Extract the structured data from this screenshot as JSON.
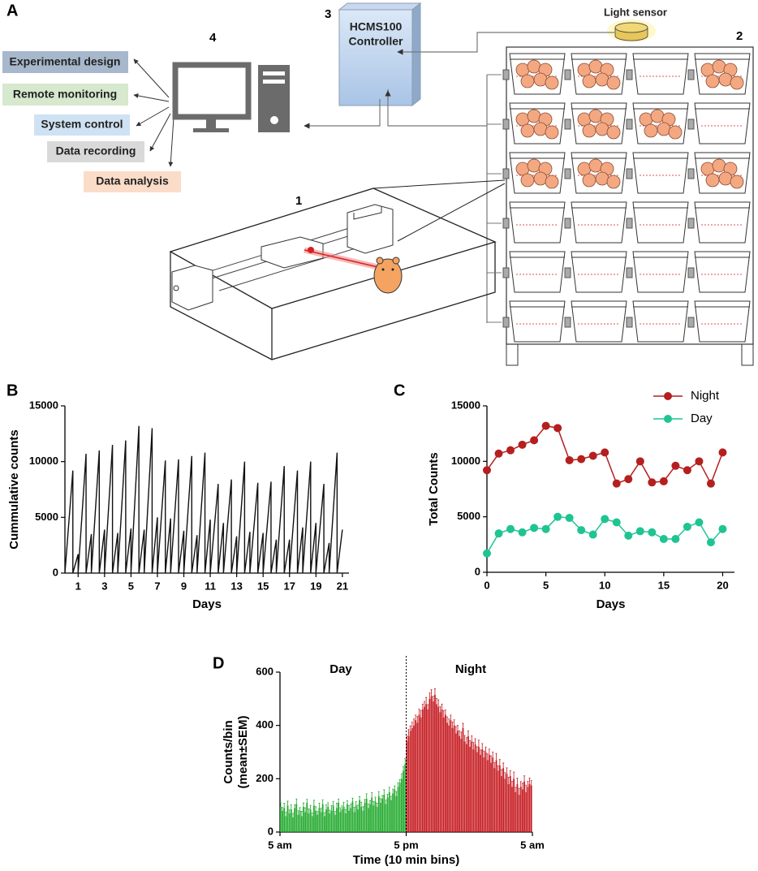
{
  "diagram": {
    "panel_label": "A",
    "computer_label": "4",
    "controller_label": "3",
    "rack_label": "2",
    "cage_label": "1",
    "controller_name": [
      "HCMS100",
      "Controller"
    ],
    "sensor": "Light sensor",
    "functions": [
      "Experimental design",
      "Remote monitoring",
      "System control",
      "Data recording",
      "Data analysis"
    ]
  },
  "chart_data": [
    {
      "type": "line",
      "panel_label": "B",
      "x_label": "Days",
      "y_label": "Cummulative counts",
      "x": [
        0,
        0.6,
        0.6,
        1,
        1,
        1.6,
        1.6,
        2,
        2,
        2.6,
        2.6,
        3,
        3,
        3.6,
        3.6,
        4,
        4,
        4.6,
        4.6,
        5,
        5,
        5.6,
        5.6,
        6,
        6,
        6.6,
        6.6,
        7,
        7,
        7.6,
        7.6,
        8,
        8,
        8.6,
        8.6,
        9,
        9,
        9.6,
        9.6,
        10,
        10,
        10.6,
        10.6,
        11,
        11,
        11.6,
        11.6,
        12,
        12,
        12.6,
        12.6,
        13,
        13,
        13.6,
        13.6,
        14,
        14,
        14.6,
        14.6,
        15,
        15,
        15.6,
        15.6,
        16,
        16,
        16.6,
        16.6,
        17,
        17,
        17.6,
        17.6,
        18,
        18,
        18.6,
        18.6,
        19,
        19,
        19.6,
        19.6,
        20,
        20,
        20.6,
        20.6,
        21
      ],
      "series": [
        {
          "color": "#111111",
          "values": [
            0,
            9200,
            0,
            1700,
            0,
            10700,
            0,
            3500,
            0,
            11000,
            0,
            3900,
            0,
            11500,
            0,
            3600,
            0,
            11900,
            0,
            4000,
            0,
            13200,
            0,
            3900,
            0,
            13000,
            0,
            5000,
            0,
            10100,
            0,
            4900,
            0,
            10200,
            0,
            3800,
            0,
            10500,
            0,
            3400,
            0,
            10800,
            0,
            4800,
            0,
            8000,
            0,
            4500,
            0,
            8400,
            0,
            3300,
            0,
            10000,
            0,
            3700,
            0,
            8100,
            0,
            3600,
            0,
            8200,
            0,
            3000,
            0,
            9600,
            0,
            3000,
            0,
            9200,
            0,
            4100,
            0,
            10000,
            0,
            4500,
            0,
            8000,
            0,
            2700,
            0,
            10800,
            0,
            3900
          ]
        }
      ],
      "xlim": [
        0,
        21.5
      ],
      "xticks": [
        1,
        3,
        5,
        7,
        9,
        11,
        13,
        15,
        17,
        19,
        21
      ],
      "ylim": [
        0,
        15000
      ],
      "yticks": [
        0,
        5000,
        10000,
        15000
      ]
    },
    {
      "type": "line",
      "panel_label": "C",
      "x_label": "Days",
      "y_label": "Total Counts",
      "markers": true,
      "legend": "upper right",
      "x": [
        0,
        1,
        2,
        3,
        4,
        5,
        6,
        7,
        8,
        9,
        10,
        11,
        12,
        13,
        14,
        15,
        16,
        17,
        18,
        19,
        20
      ],
      "series": [
        {
          "name": "Night",
          "color": "#b51f1f",
          "values": [
            9200,
            10700,
            11000,
            11500,
            11900,
            13200,
            13000,
            10100,
            10200,
            10500,
            10800,
            8000,
            8400,
            10000,
            8100,
            8200,
            9600,
            9200,
            10000,
            8000,
            10800
          ]
        },
        {
          "name": "Day",
          "color": "#1fc493",
          "values": [
            1700,
            3500,
            3900,
            3600,
            4000,
            3900,
            5000,
            4900,
            3800,
            3400,
            4800,
            4500,
            3300,
            3700,
            3600,
            3000,
            3000,
            4100,
            4500,
            2700,
            3900
          ]
        }
      ],
      "xlim": [
        0,
        21
      ],
      "xticks": [
        0,
        5,
        10,
        15,
        20
      ],
      "ylim": [
        0,
        15000
      ],
      "yticks": [
        0,
        5000,
        10000,
        15000
      ]
    },
    {
      "type": "bar",
      "panel_label": "D",
      "x_label": "Time (10 min bins)",
      "y_label": [
        "Counts/bin",
        "(mean±SEM)"
      ],
      "annotations": [
        "Day",
        "Night"
      ],
      "series": [
        {
          "name": "Day",
          "color": "#1fa82a",
          "values": [
            95,
            80,
            90,
            60,
            100,
            70,
            85,
            55,
            90,
            105,
            65,
            80,
            60,
            95,
            75,
            110,
            70,
            85,
            60,
            100,
            80,
            65,
            90,
            75,
            105,
            60,
            85,
            95,
            70,
            80,
            100,
            65,
            90,
            110,
            75,
            85,
            95,
            70,
            105,
            80,
            90,
            115,
            75,
            100,
            85,
            120,
            95,
            80,
            110,
            125,
            90,
            105,
            130,
            100,
            115,
            95,
            135,
            110,
            125,
            140,
            105,
            130,
            150,
            120,
            145,
            160,
            135,
            170,
            185,
            200,
            230,
            255
          ],
          "errors": [
            15,
            12,
            18,
            14,
            16,
            13,
            17,
            15,
            12,
            19,
            15,
            12,
            18,
            14,
            16,
            13,
            17,
            15,
            12,
            19,
            15,
            12,
            18,
            14,
            16,
            13,
            17,
            15,
            12,
            19,
            15,
            12,
            18,
            14,
            16,
            13,
            17,
            15,
            12,
            19,
            15,
            12,
            18,
            14,
            16,
            13,
            17,
            15,
            12,
            19,
            15,
            12,
            18,
            14,
            16,
            13,
            17,
            15,
            12,
            19,
            15,
            12,
            18,
            14,
            16,
            13,
            17,
            15,
            12,
            19,
            16,
            20
          ]
        },
        {
          "name": "Night",
          "color": "#c4161c",
          "values": [
            340,
            360,
            380,
            390,
            400,
            420,
            410,
            440,
            430,
            460,
            470,
            480,
            460,
            500,
            510,
            490,
            515,
            480,
            470,
            450,
            460,
            430,
            440,
            410,
            400,
            420,
            390,
            400,
            370,
            380,
            360,
            350,
            390,
            340,
            330,
            360,
            320,
            340,
            310,
            330,
            300,
            320,
            290,
            310,
            280,
            300,
            270,
            290,
            260,
            280,
            240,
            270,
            230,
            250,
            210,
            240,
            200,
            220,
            180,
            210,
            170,
            200,
            150,
            180,
            140,
            170,
            160,
            190,
            150,
            170,
            180,
            175
          ],
          "errors": [
            20,
            25,
            18,
            22,
            24,
            19,
            23,
            21,
            26,
            20,
            20,
            25,
            18,
            22,
            24,
            19,
            23,
            21,
            26,
            20,
            20,
            25,
            18,
            22,
            24,
            19,
            23,
            21,
            26,
            20,
            20,
            25,
            18,
            22,
            24,
            19,
            23,
            21,
            26,
            20,
            20,
            25,
            18,
            22,
            24,
            19,
            23,
            21,
            26,
            20,
            20,
            25,
            18,
            22,
            24,
            19,
            23,
            21,
            26,
            20,
            20,
            25,
            18,
            22,
            24,
            19,
            23,
            21,
            26,
            20,
            22,
            18
          ]
        }
      ],
      "xlim": [
        0,
        144
      ],
      "xticks": [
        {
          "value": 0,
          "label": "5 am"
        },
        {
          "value": 72,
          "label": "5 pm"
        },
        {
          "value": 144,
          "label": "5 am"
        }
      ],
      "ylim": [
        0,
        600
      ],
      "yticks": [
        0,
        200,
        400,
        600
      ]
    }
  ]
}
